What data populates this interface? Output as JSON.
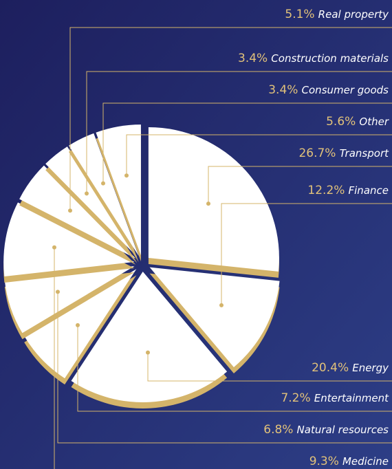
{
  "chart_data": {
    "type": "pie",
    "categories": [
      "Transport",
      "Finance",
      "Energy",
      "Entertainment",
      "Natural resources",
      "Medicine",
      "Real property",
      "Construction materials",
      "Consumer goods",
      "Other"
    ],
    "values": [
      26.7,
      12.2,
      20.4,
      7.2,
      6.8,
      9.3,
      5.1,
      3.4,
      3.4,
      5.6
    ],
    "value_labels": [
      "26.7%",
      "12.2%",
      "20.4%",
      "7.2%",
      "6.8%",
      "9.3%",
      "5.1%",
      "3.4%",
      "3.4%",
      "5.6%"
    ],
    "color": "#ffffff",
    "accent_color": "#d4b46a"
  }
}
